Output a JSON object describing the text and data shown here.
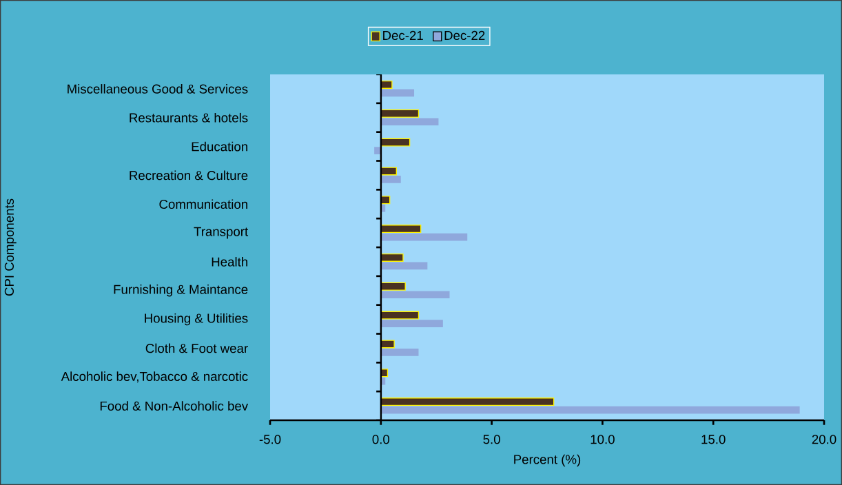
{
  "chart_data": {
    "type": "bar",
    "orientation": "horizontal",
    "categories": [
      "Miscellaneous Good & Services",
      "Restaurants & hotels",
      "Education",
      "Recreation & Culture",
      "Communication",
      "Transport",
      "Health",
      "Furnishing & Maintance",
      "Housing & Utilities",
      "Cloth & Foot wear",
      "Alcoholic bev,Tobacco & narcotic",
      "Food & Non-Alcoholic bev"
    ],
    "series": [
      {
        "name": "Dec-21",
        "color": "#4a3222",
        "values": [
          0.5,
          1.7,
          1.3,
          0.7,
          0.4,
          1.8,
          1.0,
          1.1,
          1.7,
          0.6,
          0.3,
          7.8
        ]
      },
      {
        "name": "Dec-22",
        "color": "#8fa8dc",
        "values": [
          1.5,
          2.6,
          -0.3,
          0.9,
          0.2,
          3.9,
          2.1,
          3.1,
          2.8,
          1.7,
          0.2,
          18.9
        ]
      }
    ],
    "xlabel": "Percent (%)",
    "ylabel": "CPI Components",
    "xlim": [
      -5,
      20
    ],
    "xticks": [
      {
        "value": -5,
        "label": "-5.0"
      },
      {
        "value": 0,
        "label": "0.0"
      },
      {
        "value": 5,
        "label": "5.0"
      },
      {
        "value": 10,
        "label": "10.0"
      },
      {
        "value": 15,
        "label": "15.0"
      },
      {
        "value": 20,
        "label": "20.0"
      }
    ],
    "ref_lines": [
      {
        "axis": "x",
        "value": 0,
        "color": "#000000"
      }
    ],
    "grid": false,
    "legend": "top"
  }
}
